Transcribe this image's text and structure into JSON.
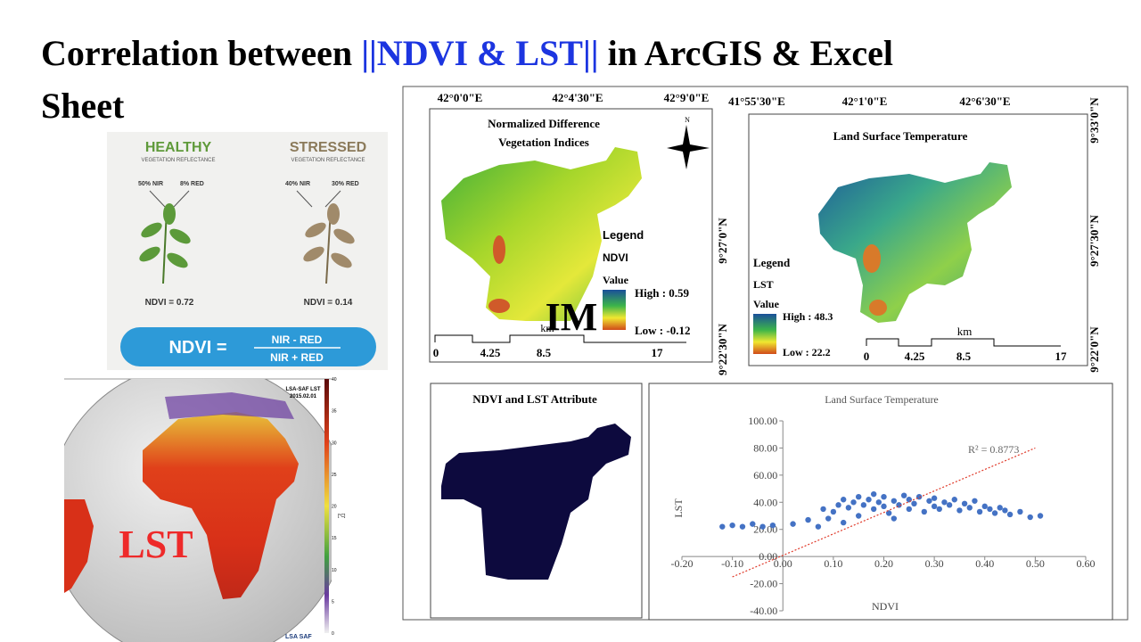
{
  "title": {
    "before": "Correlation between ",
    "highlight": "||NDVI & LST||",
    "after": " in ArcGIS & Excel",
    "line2": "Sheet"
  },
  "ndvi_infographic": {
    "healthy": "HEALTHY",
    "healthy_sub": "VEGETATION REFLECTANCE",
    "stressed": "STRESSED",
    "stressed_sub": "VEGETATION REFLECTANCE",
    "healthy_nir": "50% NIR",
    "healthy_red": "8% RED",
    "stressed_nir": "40% NIR",
    "stressed_red": "30% RED",
    "healthy_ndvi": "NDVI = 0.72",
    "stressed_ndvi": "NDVI = 0.14",
    "formula_lhs": "NDVI =",
    "numerator": "NIR - RED",
    "denominator": "NIR + RED"
  },
  "globe": {
    "title": "LSA-SAF LST",
    "date": "2015.02.01",
    "label": "LST",
    "unit": "[°C]",
    "logo": "LSA SAF",
    "colorbar_ticks": [
      "40",
      "35",
      "30",
      "25",
      "20",
      "15",
      "10",
      "5",
      "0"
    ]
  },
  "ndvi_map": {
    "title_line1": "Normalized Difference",
    "title_line2": "Vegetation Indices",
    "north": "N",
    "top_ticks": [
      "42°0'0\"E",
      "42°4'30\"E",
      "42°9'0\"E"
    ],
    "side_ticks": [
      "9°27'0\"N",
      "9°22'30\"N"
    ],
    "legend": "Legend",
    "layer": "NDVI",
    "value": "Value",
    "high": "High : 0.59",
    "low": "Low : -0.12",
    "scale": [
      "0",
      "4.25",
      "8.5",
      "17"
    ],
    "scale_unit": "km"
  },
  "lst_map": {
    "title": "Land Surface Temperature",
    "top_ticks": [
      "41°55'30\"E",
      "42°1'0\"E",
      "42°6'30\"E"
    ],
    "side_ticks": [
      "9°33'0\"N",
      "9°27'30\"N",
      "9°22'0\"N"
    ],
    "legend": "Legend",
    "layer": "LST",
    "value": "Value",
    "high": "High : 48.3",
    "low": "Low : 22.2",
    "scale": [
      "0",
      "4.25",
      "8.5",
      "17"
    ],
    "scale_unit": "km"
  },
  "attribute_map": {
    "title": "NDVI and LST Attribute"
  },
  "watermark": "IM",
  "chart_data": {
    "type": "scatter",
    "title": "Land Surface Temperature",
    "x_label": "NDVI",
    "y_label": "LST",
    "color": "#4472c4",
    "annotation": "R² = 0.8773",
    "xlim": [
      -0.2,
      0.6
    ],
    "xticks": [
      {
        "value": -0.2,
        "label": "-0.20"
      },
      {
        "value": -0.1,
        "label": "-0.10"
      },
      {
        "value": 0,
        "label": "0.00"
      },
      {
        "value": 0.1,
        "label": "0.10"
      },
      {
        "value": 0.2,
        "label": "0.20"
      },
      {
        "value": 0.3,
        "label": "0.30"
      },
      {
        "value": 0.4,
        "label": "0.40"
      },
      {
        "value": 0.5,
        "label": "0.50"
      },
      {
        "value": 0.6,
        "label": "0.60"
      }
    ],
    "ylim": [
      -40,
      100
    ],
    "yticks": [
      {
        "value": -40,
        "label": "-40.00"
      },
      {
        "value": -20,
        "label": "-20.00"
      },
      {
        "value": 0,
        "label": "0.00"
      },
      {
        "value": 20,
        "label": "20.00"
      },
      {
        "value": 40,
        "label": "40.00"
      },
      {
        "value": 60,
        "label": "60.00"
      },
      {
        "value": 80,
        "label": "80.00"
      },
      {
        "value": 100,
        "label": "100.00"
      }
    ],
    "x": [
      -0.12,
      -0.1,
      -0.08,
      -0.06,
      -0.04,
      -0.02,
      0.02,
      0.05,
      0.07,
      0.1,
      0.11,
      0.12,
      0.13,
      0.14,
      0.15,
      0.15,
      0.16,
      0.17,
      0.18,
      0.18,
      0.19,
      0.2,
      0.2,
      0.21,
      0.22,
      0.23,
      0.24,
      0.25,
      0.25,
      0.26,
      0.27,
      0.28,
      0.29,
      0.3,
      0.3,
      0.31,
      0.32,
      0.33,
      0.34,
      0.35,
      0.36,
      0.37,
      0.38,
      0.39,
      0.4,
      0.41,
      0.42,
      0.43,
      0.44,
      0.45,
      0.47,
      0.49,
      0.51,
      0.12,
      0.22,
      0.09,
      0.08
    ],
    "values": [
      22,
      23,
      22,
      24,
      22,
      23,
      24,
      27,
      22,
      33,
      38,
      42,
      36,
      40,
      44,
      30,
      38,
      42,
      35,
      46,
      40,
      37,
      44,
      32,
      41,
      38,
      45,
      35,
      42,
      39,
      44,
      33,
      41,
      37,
      43,
      35,
      40,
      38,
      42,
      34,
      39,
      36,
      41,
      33,
      37,
      35,
      32,
      36,
      34,
      31,
      33,
      29,
      30,
      25,
      28,
      28,
      35
    ],
    "trendline": {
      "x": [
        -0.1,
        0.5
      ],
      "values": [
        -15,
        80
      ]
    }
  }
}
